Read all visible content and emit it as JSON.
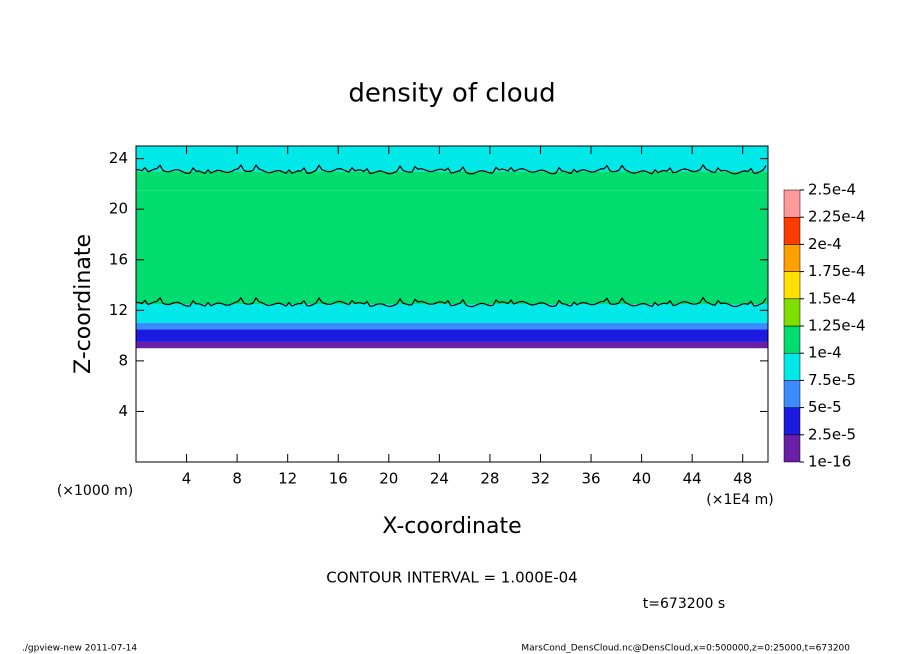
{
  "chart_data": {
    "type": "heatmap",
    "title": "density of cloud",
    "x_label": "X-coordinate",
    "y_label": "Z-coordinate",
    "y_unit": "(×1000 m)",
    "x_unit": "(×1E4 m)",
    "contour_text": "CONTOUR INTERVAL = 1.000E-04",
    "time_text": "t=673200 s",
    "footer_left": "./gpview-new  2011-07-14",
    "footer_right": "MarsCond_DensCloud.nc@DensCloud,x=0:500000,z=0:25000,t=673200",
    "xlim": [
      0,
      50
    ],
    "xticks": [
      4,
      8,
      12,
      16,
      20,
      24,
      28,
      32,
      36,
      40,
      44,
      48
    ],
    "ylim": [
      0,
      25
    ],
    "yticks": [
      4,
      8,
      12,
      16,
      20,
      24
    ],
    "z_bins": [
      9,
      9.5,
      10.5,
      11,
      12.5,
      21.5,
      23,
      25
    ],
    "values": [
      1.5e-05,
      3.5e-05,
      6e-05,
      8.5e-05,
      0.00011,
      0.000105,
      9.5e-05
    ],
    "levels": [
      {
        "value": 1e-16,
        "label": "1e-16"
      },
      {
        "value": 2.5e-05,
        "label": "2.5e-5"
      },
      {
        "value": 5e-05,
        "label": "5e-5"
      },
      {
        "value": 7.5e-05,
        "label": "7.5e-5"
      },
      {
        "value": 0.0001,
        "label": "1e-4"
      },
      {
        "value": 0.000125,
        "label": "1.25e-4"
      },
      {
        "value": 0.00015,
        "label": "1.5e-4"
      },
      {
        "value": 0.000175,
        "label": "1.75e-4"
      },
      {
        "value": 0.0002,
        "label": "2e-4"
      },
      {
        "value": 0.000225,
        "label": "2.25e-4"
      },
      {
        "value": 0.00025,
        "label": "2.5e-4"
      }
    ],
    "colors": [
      "#6a1fa8",
      "#1a1ae0",
      "#3a8cff",
      "#00e8e8",
      "#00dc6e",
      "#7ee000",
      "#ffe000",
      "#ff9f00",
      "#ff3c00",
      "#ff9a9a"
    ]
  }
}
